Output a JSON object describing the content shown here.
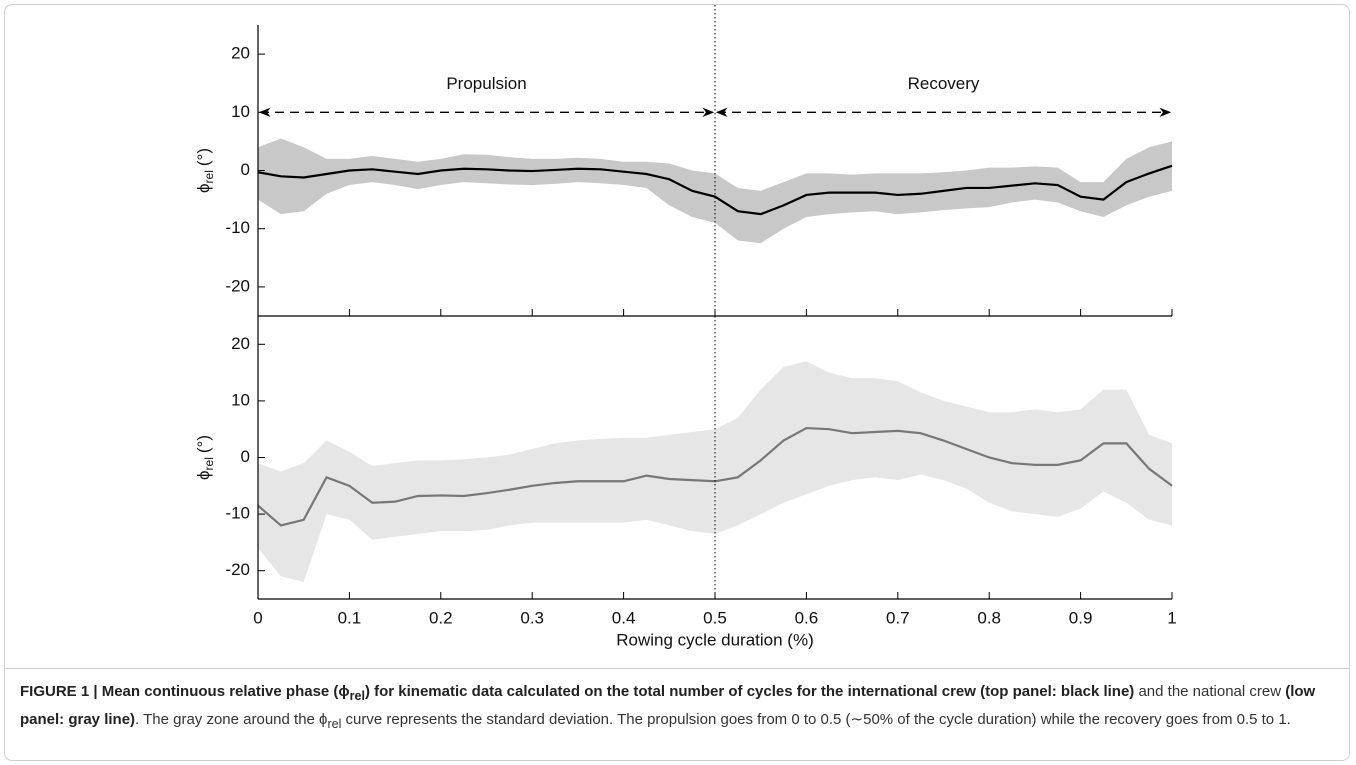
{
  "chart_data": [
    {
      "type": "line",
      "ylabel": {
        "symbol": "ϕ",
        "subscript": "rel",
        "unit": "(°)"
      },
      "xlim": [
        0,
        1
      ],
      "xticks": [
        0,
        0.1,
        0.2,
        0.3,
        0.4,
        0.5,
        0.6,
        0.7,
        0.8,
        0.9,
        1
      ],
      "show_xtick_labels": false,
      "ylim": [
        -25,
        25
      ],
      "yticks": [
        -20,
        -10,
        0,
        10,
        20
      ],
      "vline": 0.5,
      "annotations": [
        {
          "text": "Propulsion",
          "x": [
            0,
            0.5
          ],
          "y": 10
        },
        {
          "text": "Recovery",
          "x": [
            0.5,
            1
          ],
          "y": 10
        }
      ],
      "x": [
        0,
        0.025,
        0.05,
        0.075,
        0.1,
        0.125,
        0.15,
        0.175,
        0.2,
        0.225,
        0.25,
        0.275,
        0.3,
        0.325,
        0.35,
        0.375,
        0.4,
        0.425,
        0.45,
        0.475,
        0.5,
        0.525,
        0.55,
        0.575,
        0.6,
        0.625,
        0.65,
        0.675,
        0.7,
        0.725,
        0.75,
        0.775,
        0.8,
        0.825,
        0.85,
        0.875,
        0.9,
        0.925,
        0.95,
        0.975,
        1
      ],
      "series": [
        {
          "color": "#000000",
          "band_color": "#c8c8c8",
          "values": [
            -0.3,
            -1.0,
            -1.2,
            -0.6,
            0,
            0.2,
            -0.2,
            -0.6,
            0,
            0.3,
            0.2,
            0,
            -0.1,
            0.1,
            0.3,
            0.2,
            -0.2,
            -0.6,
            -1.5,
            -3.5,
            -4.5,
            -7,
            -7.5,
            -6,
            -4.2,
            -3.8,
            -3.8,
            -3.8,
            -4.2,
            -4.0,
            -3.5,
            -3.0,
            -3.0,
            -2.6,
            -2.2,
            -2.5,
            -4.5,
            -5,
            -2,
            -0.5,
            0.8
          ],
          "upper": [
            4,
            5.5,
            4,
            2,
            2,
            2.5,
            2,
            1.5,
            2,
            2.8,
            2.7,
            2.3,
            2.0,
            2.0,
            2.2,
            2.0,
            1.5,
            1.5,
            1.2,
            0,
            -0.5,
            -3,
            -3.5,
            -2,
            -0.5,
            -0.5,
            -0.7,
            -0.5,
            -0.5,
            -0.5,
            -0.3,
            0,
            0.5,
            0.5,
            0.7,
            0.5,
            -2,
            -2,
            2,
            4,
            5
          ],
          "lower": [
            -5,
            -7.5,
            -7,
            -4,
            -2.5,
            -2,
            -2.5,
            -3.2,
            -2.5,
            -2,
            -2.2,
            -2.4,
            -2.5,
            -2.3,
            -2,
            -2.2,
            -2.5,
            -3,
            -6,
            -8,
            -9,
            -12,
            -12.5,
            -10,
            -8,
            -7.5,
            -7.2,
            -7,
            -7.5,
            -7.2,
            -6.8,
            -6.5,
            -6.3,
            -5.5,
            -5,
            -5.5,
            -7,
            -8,
            -6,
            -4.5,
            -3.5
          ]
        }
      ]
    },
    {
      "type": "line",
      "ylabel": {
        "symbol": "ϕ",
        "subscript": "rel",
        "unit": "(°)"
      },
      "xlabel": "Rowing cycle duration (%)",
      "xlim": [
        0,
        1
      ],
      "xticks": [
        0,
        0.1,
        0.2,
        0.3,
        0.4,
        0.5,
        0.6,
        0.7,
        0.8,
        0.9,
        1
      ],
      "show_xtick_labels": true,
      "ylim": [
        -25,
        25
      ],
      "yticks": [
        -20,
        -10,
        0,
        10,
        20
      ],
      "vline": 0.5,
      "x": [
        0,
        0.025,
        0.05,
        0.075,
        0.1,
        0.125,
        0.15,
        0.175,
        0.2,
        0.225,
        0.25,
        0.275,
        0.3,
        0.325,
        0.35,
        0.375,
        0.4,
        0.425,
        0.45,
        0.475,
        0.5,
        0.525,
        0.55,
        0.575,
        0.6,
        0.625,
        0.65,
        0.675,
        0.7,
        0.725,
        0.75,
        0.775,
        0.8,
        0.825,
        0.85,
        0.875,
        0.9,
        0.925,
        0.95,
        0.975,
        1
      ],
      "series": [
        {
          "color": "#777777",
          "band_color": "#e6e6e6",
          "values": [
            -8.5,
            -12,
            -11,
            -3.5,
            -5,
            -8,
            -7.8,
            -6.8,
            -6.7,
            -6.8,
            -6.3,
            -5.7,
            -5,
            -4.5,
            -4.2,
            -4.2,
            -4.2,
            -3.2,
            -3.8,
            -4,
            -4.2,
            -3.5,
            -0.5,
            3,
            5.2,
            5,
            4.3,
            4.5,
            4.7,
            4.3,
            3,
            1.5,
            0,
            -1,
            -1.3,
            -1.3,
            -0.5,
            2.5,
            2.5,
            -2,
            -5
          ],
          "upper": [
            -1,
            -2.5,
            -1,
            3,
            1,
            -1.5,
            -1,
            -0.5,
            -0.5,
            -0.3,
            0,
            0.5,
            1.5,
            2.5,
            3,
            3.3,
            3.5,
            3.5,
            4,
            4.5,
            5,
            7,
            12,
            16,
            17,
            15,
            14,
            14,
            13.5,
            11.5,
            10,
            9,
            8,
            8,
            8.5,
            8,
            8.5,
            12,
            12,
            4,
            2.5
          ],
          "lower": [
            -16,
            -21,
            -22,
            -10,
            -11,
            -14.5,
            -14,
            -13.5,
            -13,
            -13,
            -12.8,
            -12,
            -11.5,
            -11.5,
            -11.5,
            -11.5,
            -11.5,
            -11,
            -12,
            -13,
            -13.5,
            -12,
            -10,
            -8,
            -6.5,
            -5,
            -4,
            -3.5,
            -4,
            -3,
            -4,
            -5.5,
            -8,
            -9.5,
            -10,
            -10.5,
            -9,
            -6,
            -8,
            -11,
            -12
          ]
        }
      ]
    }
  ],
  "caption": [
    {
      "text": "FIGURE 1 | Mean continuous relative phase (ϕ",
      "bold": true
    },
    {
      "text": "rel",
      "bold": true,
      "sub": true
    },
    {
      "text": ") for kinematic data calculated on the total number of cycles for the international crew (top panel: black line)",
      "bold": true
    },
    {
      "text": " and the national crew "
    },
    {
      "text": "(low panel: gray line)",
      "bold": true
    },
    {
      "text": ". The gray zone around the ϕ"
    },
    {
      "text": "rel",
      "sub": true
    },
    {
      "text": " curve represents the standard deviation. The propulsion goes from 0 to 0.5 (∼50% of the cycle duration) while the recovery goes from 0.5 to 1."
    }
  ]
}
